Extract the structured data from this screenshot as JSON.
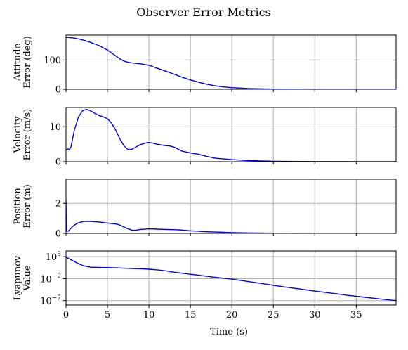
{
  "chart_data": {
    "type": "line",
    "title": "Observer Error Metrics",
    "xlabel": "Time (s)",
    "xlim": [
      0,
      39.8
    ],
    "xticks": [
      0,
      5,
      10,
      15,
      20,
      25,
      30,
      35
    ],
    "grid": true,
    "line_color": "#0000dd",
    "panels": [
      {
        "id": "attitude",
        "ylabel_lines": [
          "Attitude",
          "Error (deg)"
        ],
        "scale": "linear",
        "ylim": [
          0,
          185
        ],
        "yticks": [
          0,
          100
        ],
        "ytick_labels": [
          "0",
          "100"
        ],
        "series": {
          "x": [
            0,
            1,
            2,
            3,
            4,
            5,
            6,
            6.5,
            7,
            7.5,
            8,
            9,
            10,
            11,
            12,
            13,
            14,
            15,
            16,
            17,
            18,
            19,
            20,
            22,
            25,
            30,
            35,
            39.8
          ],
          "y": [
            178,
            175,
            169,
            160,
            149,
            134,
            114,
            104,
            96,
            92,
            90,
            87,
            82,
            72,
            62,
            52,
            41,
            32,
            24,
            17,
            12,
            8,
            5.5,
            2.5,
            0.8,
            0.2,
            0.05,
            0.02
          ]
        }
      },
      {
        "id": "velocity",
        "ylabel_lines": [
          "Velocity",
          "Error (m/s)"
        ],
        "scale": "linear",
        "ylim": [
          0,
          15.5
        ],
        "yticks": [
          0,
          10
        ],
        "ytick_labels": [
          "0",
          "10"
        ],
        "series": {
          "x": [
            0,
            0.2,
            0.4,
            0.6,
            1,
            1.5,
            2,
            2.5,
            3,
            3.5,
            4,
            4.5,
            5,
            5.5,
            6,
            6.5,
            7,
            7.5,
            8,
            8.5,
            9,
            9.5,
            10,
            10.5,
            11,
            12,
            12.5,
            13,
            14,
            15,
            16,
            17,
            18,
            19,
            20,
            22,
            25,
            30,
            35,
            39.8
          ],
          "y": [
            3.2,
            3.6,
            3.5,
            4.2,
            9.0,
            12.8,
            14.6,
            15.0,
            14.5,
            13.8,
            13.2,
            12.8,
            12.3,
            11.0,
            9.0,
            6.5,
            4.5,
            3.4,
            3.6,
            4.3,
            4.9,
            5.3,
            5.5,
            5.3,
            5.0,
            4.6,
            4.5,
            4.2,
            3.0,
            2.5,
            2.1,
            1.5,
            1.0,
            0.8,
            0.6,
            0.3,
            0.12,
            0.04,
            0.02,
            0.01
          ]
        }
      },
      {
        "id": "position",
        "ylabel_lines": [
          "Position",
          "Error (m)"
        ],
        "scale": "linear",
        "ylim": [
          0,
          3.6
        ],
        "yticks": [
          0,
          2
        ],
        "ytick_labels": [
          "0",
          "2"
        ],
        "series": {
          "x": [
            0,
            0.05,
            0.3,
            0.6,
            1,
            1.5,
            2,
            2.5,
            3,
            4,
            5,
            6,
            6.5,
            7,
            7.5,
            8,
            8.5,
            9,
            10,
            11,
            12,
            13,
            14,
            15,
            16,
            17,
            18,
            19,
            20,
            22,
            25,
            30,
            35,
            39.8
          ],
          "y": [
            2.2,
            0.15,
            0.15,
            0.35,
            0.55,
            0.7,
            0.78,
            0.8,
            0.79,
            0.75,
            0.68,
            0.62,
            0.55,
            0.42,
            0.3,
            0.2,
            0.22,
            0.26,
            0.3,
            0.28,
            0.26,
            0.25,
            0.22,
            0.17,
            0.14,
            0.11,
            0.09,
            0.07,
            0.05,
            0.03,
            0.015,
            0.005,
            0.002,
            0.001
          ]
        }
      },
      {
        "id": "lyapunov",
        "ylabel_lines": [
          "Lyapunov",
          "Value"
        ],
        "scale": "log",
        "ylim": [
          1e-08,
          20000
        ],
        "yticks": [
          1000,
          0.01,
          1e-07
        ],
        "ytick_labels": [
          {
            "base": "10",
            "exp": "3"
          },
          {
            "base": "10",
            "exp": "−2"
          },
          {
            "base": "10",
            "exp": "−7"
          }
        ],
        "series": {
          "x": [
            0,
            0.5,
            1,
            1.5,
            2,
            2.5,
            3,
            4,
            5,
            6,
            7,
            8,
            9,
            10,
            11,
            12,
            13,
            14,
            15,
            16,
            17,
            18,
            20,
            22,
            24,
            26,
            28,
            30,
            32,
            34,
            36,
            38,
            39.8
          ],
          "y": [
            800,
            250,
            80,
            25,
            10,
            6,
            4,
            3.5,
            3.2,
            2.8,
            2.4,
            2.0,
            1.7,
            1.4,
            1.0,
            0.6,
            0.3,
            0.17,
            0.1,
            0.06,
            0.035,
            0.02,
            0.008,
            0.0022,
            0.0006,
            0.00016,
            5e-05,
            1.5e-05,
            5e-06,
            1.6e-06,
            6e-07,
            2.2e-07,
            1e-07
          ]
        }
      }
    ]
  }
}
